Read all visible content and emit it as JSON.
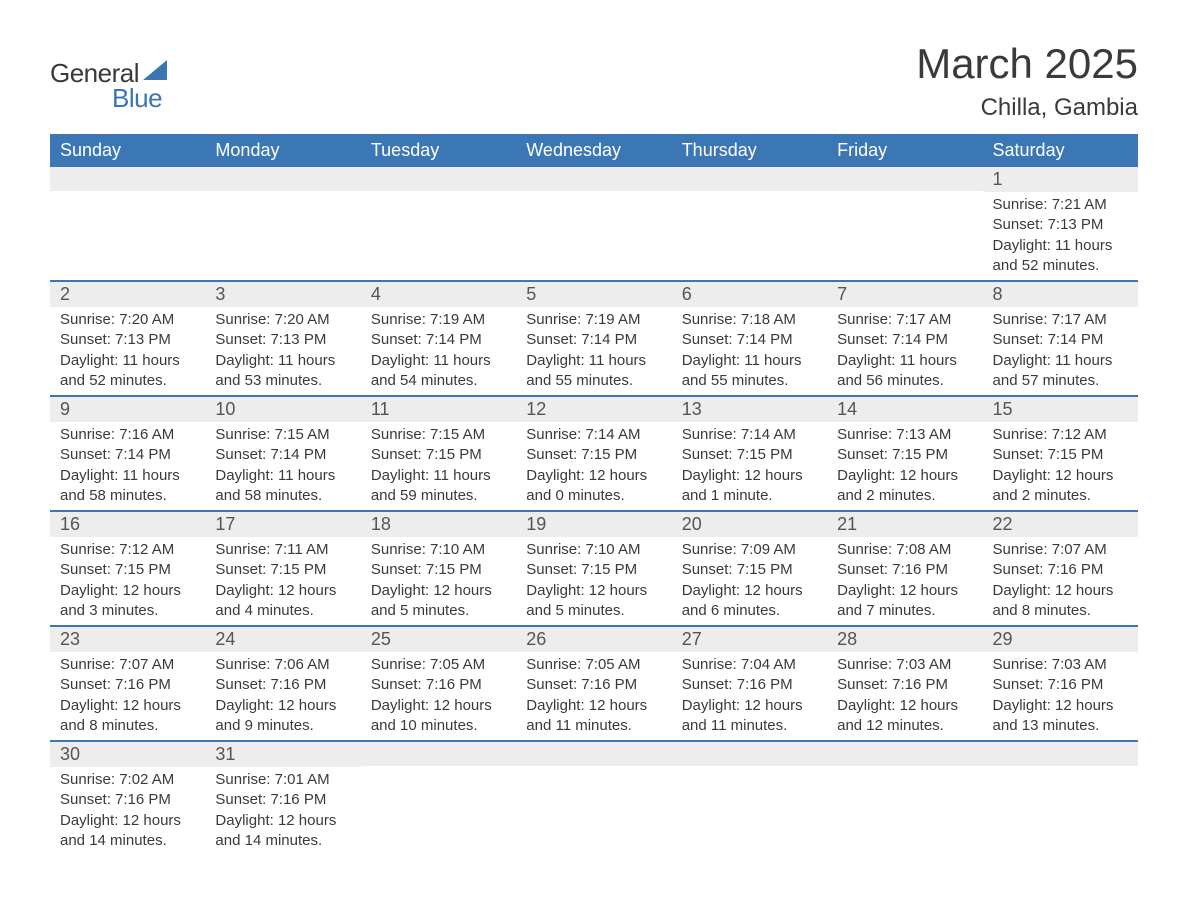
{
  "logo": {
    "word1": "General",
    "word2": "Blue",
    "sail_color": "#3a76b3"
  },
  "title": "March 2025",
  "location": "Chilla, Gambia",
  "colors": {
    "header_bg": "#3a77b4",
    "header_text": "#ffffff",
    "daynum_bg": "#ededed",
    "row_border": "#3a77b4",
    "body_text": "#3a3a3a"
  },
  "day_headers": [
    "Sunday",
    "Monday",
    "Tuesday",
    "Wednesday",
    "Thursday",
    "Friday",
    "Saturday"
  ],
  "weeks": [
    [
      {
        "blank": true
      },
      {
        "blank": true
      },
      {
        "blank": true
      },
      {
        "blank": true
      },
      {
        "blank": true
      },
      {
        "blank": true
      },
      {
        "n": "1",
        "sr": "7:21 AM",
        "ss": "7:13 PM",
        "dl": "11 hours and 52 minutes."
      }
    ],
    [
      {
        "n": "2",
        "sr": "7:20 AM",
        "ss": "7:13 PM",
        "dl": "11 hours and 52 minutes."
      },
      {
        "n": "3",
        "sr": "7:20 AM",
        "ss": "7:13 PM",
        "dl": "11 hours and 53 minutes."
      },
      {
        "n": "4",
        "sr": "7:19 AM",
        "ss": "7:14 PM",
        "dl": "11 hours and 54 minutes."
      },
      {
        "n": "5",
        "sr": "7:19 AM",
        "ss": "7:14 PM",
        "dl": "11 hours and 55 minutes."
      },
      {
        "n": "6",
        "sr": "7:18 AM",
        "ss": "7:14 PM",
        "dl": "11 hours and 55 minutes."
      },
      {
        "n": "7",
        "sr": "7:17 AM",
        "ss": "7:14 PM",
        "dl": "11 hours and 56 minutes."
      },
      {
        "n": "8",
        "sr": "7:17 AM",
        "ss": "7:14 PM",
        "dl": "11 hours and 57 minutes."
      }
    ],
    [
      {
        "n": "9",
        "sr": "7:16 AM",
        "ss": "7:14 PM",
        "dl": "11 hours and 58 minutes."
      },
      {
        "n": "10",
        "sr": "7:15 AM",
        "ss": "7:14 PM",
        "dl": "11 hours and 58 minutes."
      },
      {
        "n": "11",
        "sr": "7:15 AM",
        "ss": "7:15 PM",
        "dl": "11 hours and 59 minutes."
      },
      {
        "n": "12",
        "sr": "7:14 AM",
        "ss": "7:15 PM",
        "dl": "12 hours and 0 minutes."
      },
      {
        "n": "13",
        "sr": "7:14 AM",
        "ss": "7:15 PM",
        "dl": "12 hours and 1 minute."
      },
      {
        "n": "14",
        "sr": "7:13 AM",
        "ss": "7:15 PM",
        "dl": "12 hours and 2 minutes."
      },
      {
        "n": "15",
        "sr": "7:12 AM",
        "ss": "7:15 PM",
        "dl": "12 hours and 2 minutes."
      }
    ],
    [
      {
        "n": "16",
        "sr": "7:12 AM",
        "ss": "7:15 PM",
        "dl": "12 hours and 3 minutes."
      },
      {
        "n": "17",
        "sr": "7:11 AM",
        "ss": "7:15 PM",
        "dl": "12 hours and 4 minutes."
      },
      {
        "n": "18",
        "sr": "7:10 AM",
        "ss": "7:15 PM",
        "dl": "12 hours and 5 minutes."
      },
      {
        "n": "19",
        "sr": "7:10 AM",
        "ss": "7:15 PM",
        "dl": "12 hours and 5 minutes."
      },
      {
        "n": "20",
        "sr": "7:09 AM",
        "ss": "7:15 PM",
        "dl": "12 hours and 6 minutes."
      },
      {
        "n": "21",
        "sr": "7:08 AM",
        "ss": "7:16 PM",
        "dl": "12 hours and 7 minutes."
      },
      {
        "n": "22",
        "sr": "7:07 AM",
        "ss": "7:16 PM",
        "dl": "12 hours and 8 minutes."
      }
    ],
    [
      {
        "n": "23",
        "sr": "7:07 AM",
        "ss": "7:16 PM",
        "dl": "12 hours and 8 minutes."
      },
      {
        "n": "24",
        "sr": "7:06 AM",
        "ss": "7:16 PM",
        "dl": "12 hours and 9 minutes."
      },
      {
        "n": "25",
        "sr": "7:05 AM",
        "ss": "7:16 PM",
        "dl": "12 hours and 10 minutes."
      },
      {
        "n": "26",
        "sr": "7:05 AM",
        "ss": "7:16 PM",
        "dl": "12 hours and 11 minutes."
      },
      {
        "n": "27",
        "sr": "7:04 AM",
        "ss": "7:16 PM",
        "dl": "12 hours and 11 minutes."
      },
      {
        "n": "28",
        "sr": "7:03 AM",
        "ss": "7:16 PM",
        "dl": "12 hours and 12 minutes."
      },
      {
        "n": "29",
        "sr": "7:03 AM",
        "ss": "7:16 PM",
        "dl": "12 hours and 13 minutes."
      }
    ],
    [
      {
        "n": "30",
        "sr": "7:02 AM",
        "ss": "7:16 PM",
        "dl": "12 hours and 14 minutes."
      },
      {
        "n": "31",
        "sr": "7:01 AM",
        "ss": "7:16 PM",
        "dl": "12 hours and 14 minutes."
      },
      {
        "blank": true
      },
      {
        "blank": true
      },
      {
        "blank": true
      },
      {
        "blank": true
      },
      {
        "blank": true
      }
    ]
  ],
  "labels": {
    "sunrise": "Sunrise: ",
    "sunset": "Sunset: ",
    "daylight": "Daylight: "
  }
}
